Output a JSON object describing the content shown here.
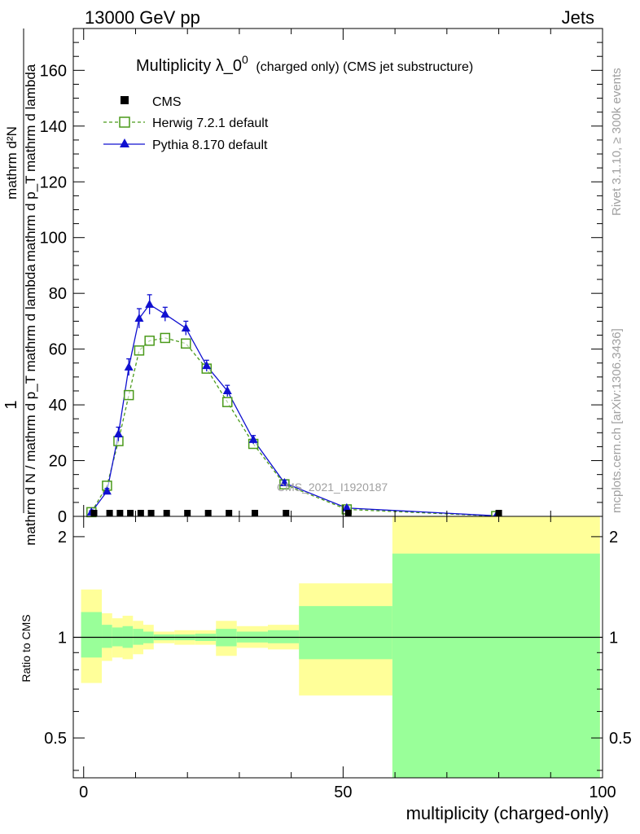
{
  "header": {
    "left": "13000 GeV pp",
    "right": "Jets"
  },
  "side_texts": {
    "rivet": "Rivet 3.1.10, ≥ 300k events",
    "mcplots": "mcplots.cern.ch [arXiv:1306.3436]"
  },
  "colors": {
    "herwig": "#4a9a1a",
    "pythia": "#1010d0",
    "band_outer": "#ffff99",
    "band_inner": "#99ff99",
    "axis": "#000000",
    "watermark": "#a0a0a0"
  },
  "chart_data": [
    {
      "type": "line",
      "title_main": "Multiplicity λ_0",
      "title_sup": "0",
      "title_sub": "(charged only) (CMS jet substructure)",
      "ylabel_num": "1",
      "ylabel_den": "mathrm d N / mathrm d p_T mathrm d lambda",
      "ylabel_num_group": "mathrm d²N",
      "ylabel_den_group": "mathrm d p_T mathrm d lambda",
      "watermark": "CMS_2021_I1920187",
      "xlim": [
        -2,
        100
      ],
      "ylim": [
        0,
        175
      ],
      "yticks": [
        0,
        20,
        40,
        60,
        80,
        100,
        120,
        140,
        160
      ],
      "legend": [
        {
          "name": "CMS",
          "marker": "square"
        },
        {
          "name": "Herwig 7.2.1 default",
          "marker": "open-square"
        },
        {
          "name": "Pythia 8.170 default",
          "marker": "triangle"
        }
      ],
      "series": [
        {
          "name": "CMS",
          "x": [
            2,
            5,
            7,
            9,
            11,
            13,
            16,
            20,
            24,
            28,
            33,
            39,
            51,
            80
          ],
          "y": [
            0.6,
            0.6,
            0.6,
            0.6,
            0.6,
            0.6,
            0.6,
            0.6,
            0.6,
            0.6,
            0.6,
            0.6,
            0.3,
            0.1
          ]
        },
        {
          "name": "Herwig 7.2.1 default",
          "x": [
            1.5,
            4.5,
            6.7,
            8.7,
            10.7,
            12.7,
            15.7,
            19.7,
            23.7,
            27.7,
            32.7,
            38.7,
            50.7,
            79.5
          ],
          "y": [
            1.5,
            11,
            27,
            43.5,
            59.5,
            63,
            64,
            62,
            53,
            41,
            26,
            11.5,
            2.5,
            0.1
          ]
        },
        {
          "name": "Pythia 8.170 default",
          "x": [
            1.5,
            4.5,
            6.7,
            8.7,
            10.7,
            12.7,
            15.7,
            19.7,
            23.7,
            27.7,
            32.7,
            38.7,
            50.7,
            79.5
          ],
          "y": [
            1.5,
            9,
            29.5,
            53.5,
            71,
            76,
            72.5,
            67.5,
            54,
            45,
            27.5,
            12,
            3,
            0.2
          ],
          "err": [
            0.5,
            1,
            2.5,
            3,
            3.5,
            3.5,
            2.5,
            2.5,
            2,
            2,
            1.5,
            1,
            0.5,
            0.1
          ]
        }
      ]
    },
    {
      "type": "area",
      "ylabel": "Ratio to CMS",
      "xlabel": "multiplicity (charged-only)",
      "xlim": [
        -2,
        100
      ],
      "ylim": [
        0.38,
        2.3
      ],
      "yticks": [
        0.5,
        1,
        2
      ],
      "xticks": [
        0,
        50,
        100
      ],
      "bins": [
        {
          "lo": -0.5,
          "hi": 3.5,
          "outer": [
            0.73,
            1.39
          ],
          "inner": [
            0.87,
            1.19
          ]
        },
        {
          "lo": 3.5,
          "hi": 5.5,
          "outer": [
            0.85,
            1.18
          ],
          "inner": [
            0.93,
            1.09
          ]
        },
        {
          "lo": 5.5,
          "hi": 7.5,
          "outer": [
            0.87,
            1.14
          ],
          "inner": [
            0.94,
            1.07
          ]
        },
        {
          "lo": 7.5,
          "hi": 9.5,
          "outer": [
            0.86,
            1.16
          ],
          "inner": [
            0.93,
            1.08
          ]
        },
        {
          "lo": 9.5,
          "hi": 11.5,
          "outer": [
            0.89,
            1.12
          ],
          "inner": [
            0.95,
            1.06
          ]
        },
        {
          "lo": 11.5,
          "hi": 13.5,
          "outer": [
            0.92,
            1.09
          ],
          "inner": [
            0.96,
            1.04
          ]
        },
        {
          "lo": 13.5,
          "hi": 17.5,
          "outer": [
            0.96,
            1.04
          ],
          "inner": [
            0.98,
            1.02
          ]
        },
        {
          "lo": 17.5,
          "hi": 21.5,
          "outer": [
            0.95,
            1.05
          ],
          "inner": [
            0.98,
            1.02
          ]
        },
        {
          "lo": 21.5,
          "hi": 25.5,
          "outer": [
            0.95,
            1.05
          ],
          "inner": [
            0.975,
            1.025
          ]
        },
        {
          "lo": 25.5,
          "hi": 29.5,
          "outer": [
            0.88,
            1.12
          ],
          "inner": [
            0.94,
            1.06
          ]
        },
        {
          "lo": 29.5,
          "hi": 35.5,
          "outer": [
            0.93,
            1.08
          ],
          "inner": [
            0.965,
            1.04
          ]
        },
        {
          "lo": 35.5,
          "hi": 41.5,
          "outer": [
            0.92,
            1.09
          ],
          "inner": [
            0.96,
            1.05
          ]
        },
        {
          "lo": 41.5,
          "hi": 59.5,
          "outer": [
            0.67,
            1.45
          ],
          "inner": [
            0.86,
            1.24
          ]
        },
        {
          "lo": 59.5,
          "hi": 99.5,
          "outer": [
            0.38,
            2.3
          ],
          "inner": [
            0.38,
            1.78
          ]
        }
      ]
    }
  ]
}
